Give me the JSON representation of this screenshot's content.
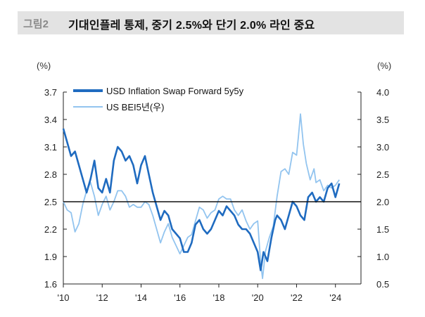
{
  "header": {
    "figure_label": "그림2",
    "title": "기대인플레 통제, 중기 2.5%와 단기 2.0% 라인 중요"
  },
  "chart_data": {
    "type": "line",
    "left_axis": {
      "unit": "(%)",
      "ylim": [
        1.6,
        3.7
      ],
      "ticks": [
        "3.7",
        "3.4",
        "3.1",
        "2.8",
        "2.5",
        "2.2",
        "1.9",
        "1.6"
      ]
    },
    "right_axis": {
      "unit": "(%)",
      "ylim": [
        0.5,
        4.0
      ],
      "ticks": [
        "4.0",
        "3.5",
        "3.0",
        "2.5",
        "2.0",
        "1.5",
        "1.0",
        "0.5"
      ]
    },
    "x_ticks": [
      "'10",
      "'12",
      "'14",
      "'16",
      "'18",
      "'20",
      "'22",
      "'24"
    ],
    "xlim": [
      2010,
      2024.3
    ],
    "reference_line": {
      "left_value": 2.5,
      "right_value": 2.0
    },
    "colors": {
      "forward": "#1f6bc0",
      "bei": "#92c4ef",
      "refline": "#111111"
    },
    "series": [
      {
        "name": "USD Inflation Swap Forward 5y5y",
        "axis": "left",
        "x": [
          2010.0,
          2010.2,
          2010.4,
          2010.6,
          2010.8,
          2011.0,
          2011.2,
          2011.4,
          2011.6,
          2011.8,
          2012.0,
          2012.2,
          2012.4,
          2012.6,
          2012.8,
          2013.0,
          2013.2,
          2013.4,
          2013.6,
          2013.8,
          2014.0,
          2014.2,
          2014.4,
          2014.6,
          2014.8,
          2015.0,
          2015.2,
          2015.4,
          2015.6,
          2015.8,
          2016.0,
          2016.2,
          2016.4,
          2016.6,
          2016.8,
          2017.0,
          2017.2,
          2017.4,
          2017.6,
          2017.8,
          2018.0,
          2018.2,
          2018.4,
          2018.6,
          2018.8,
          2019.0,
          2019.2,
          2019.4,
          2019.6,
          2019.8,
          2020.0,
          2020.15,
          2020.3,
          2020.5,
          2020.7,
          2020.9,
          2021.0,
          2021.2,
          2021.4,
          2021.6,
          2021.8,
          2022.0,
          2022.2,
          2022.4,
          2022.6,
          2022.8,
          2023.0,
          2023.2,
          2023.4,
          2023.6,
          2023.8,
          2024.0,
          2024.2
        ],
        "values": [
          3.3,
          3.15,
          3.0,
          3.05,
          2.9,
          2.75,
          2.6,
          2.75,
          2.95,
          2.65,
          2.6,
          2.75,
          2.6,
          2.95,
          3.1,
          3.05,
          2.95,
          3.0,
          2.9,
          2.7,
          2.9,
          3.0,
          2.8,
          2.6,
          2.45,
          2.3,
          2.4,
          2.35,
          2.2,
          2.15,
          2.1,
          1.95,
          1.95,
          2.05,
          2.25,
          2.3,
          2.2,
          2.15,
          2.2,
          2.3,
          2.4,
          2.35,
          2.45,
          2.4,
          2.35,
          2.25,
          2.2,
          2.2,
          2.15,
          2.05,
          1.95,
          1.75,
          1.95,
          1.85,
          2.1,
          2.3,
          2.35,
          2.3,
          2.2,
          2.35,
          2.5,
          2.45,
          2.35,
          2.3,
          2.55,
          2.6,
          2.5,
          2.55,
          2.5,
          2.65,
          2.7,
          2.55,
          2.7
        ]
      },
      {
        "name": "US BEI5년(우)",
        "axis": "right",
        "x": [
          2010.0,
          2010.2,
          2010.4,
          2010.6,
          2010.8,
          2011.0,
          2011.2,
          2011.4,
          2011.6,
          2011.8,
          2012.0,
          2012.2,
          2012.4,
          2012.6,
          2012.8,
          2013.0,
          2013.2,
          2013.4,
          2013.6,
          2013.8,
          2014.0,
          2014.2,
          2014.4,
          2014.6,
          2014.8,
          2015.0,
          2015.2,
          2015.4,
          2015.6,
          2015.8,
          2016.0,
          2016.2,
          2016.4,
          2016.6,
          2016.8,
          2017.0,
          2017.2,
          2017.4,
          2017.6,
          2017.8,
          2018.0,
          2018.2,
          2018.4,
          2018.6,
          2018.8,
          2019.0,
          2019.2,
          2019.4,
          2019.6,
          2019.8,
          2020.0,
          2020.15,
          2020.25,
          2020.4,
          2020.6,
          2020.8,
          2021.0,
          2021.2,
          2021.4,
          2021.6,
          2021.8,
          2022.0,
          2022.1,
          2022.2,
          2022.35,
          2022.5,
          2022.7,
          2022.9,
          2023.0,
          2023.2,
          2023.4,
          2023.6,
          2023.8,
          2024.0,
          2024.2
        ],
        "values": [
          2.0,
          1.85,
          1.8,
          1.45,
          1.6,
          1.95,
          2.2,
          2.35,
          2.1,
          1.75,
          1.95,
          2.1,
          1.85,
          2.0,
          2.2,
          2.2,
          2.1,
          1.9,
          1.95,
          1.9,
          1.9,
          2.0,
          1.95,
          1.75,
          1.5,
          1.25,
          1.45,
          1.6,
          1.35,
          1.2,
          1.05,
          1.2,
          1.35,
          1.4,
          1.65,
          1.9,
          1.85,
          1.7,
          1.8,
          1.85,
          2.05,
          2.1,
          2.05,
          2.05,
          1.85,
          1.75,
          1.85,
          1.65,
          1.5,
          1.6,
          1.65,
          0.9,
          0.6,
          1.1,
          1.35,
          1.55,
          2.1,
          2.55,
          2.6,
          2.5,
          2.9,
          2.85,
          3.2,
          3.6,
          3.05,
          2.7,
          2.4,
          2.6,
          2.35,
          2.4,
          2.2,
          2.3,
          2.25,
          2.3,
          2.4
        ]
      }
    ]
  }
}
